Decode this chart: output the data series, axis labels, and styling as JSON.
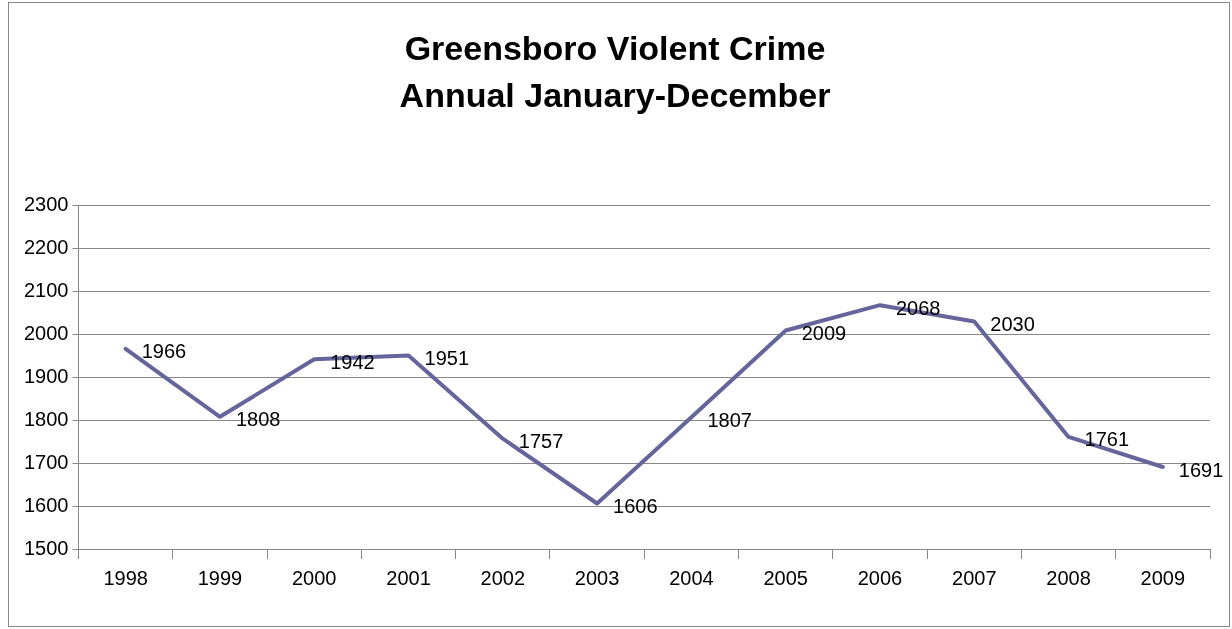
{
  "chart_data": {
    "type": "line",
    "title": "Greensboro Violent Crime",
    "subtitle": "Annual January-December",
    "categories": [
      "1998",
      "1999",
      "2000",
      "2001",
      "2002",
      "2003",
      "2004",
      "2005",
      "2006",
      "2007",
      "2008",
      "2009"
    ],
    "series": [
      {
        "color": "#65659b",
        "values": [
          1966,
          1808,
          1942,
          1951,
          1757,
          1606,
          1807,
          2009,
          2068,
          2030,
          1761,
          1691
        ]
      }
    ],
    "ylim": [
      1500,
      2300
    ],
    "yticks": [
      1500,
      1600,
      1700,
      1800,
      1900,
      2000,
      2100,
      2200,
      2300
    ],
    "grid": "y",
    "legend": false,
    "marker": "none",
    "line_style": "solid",
    "data_labels": true
  }
}
